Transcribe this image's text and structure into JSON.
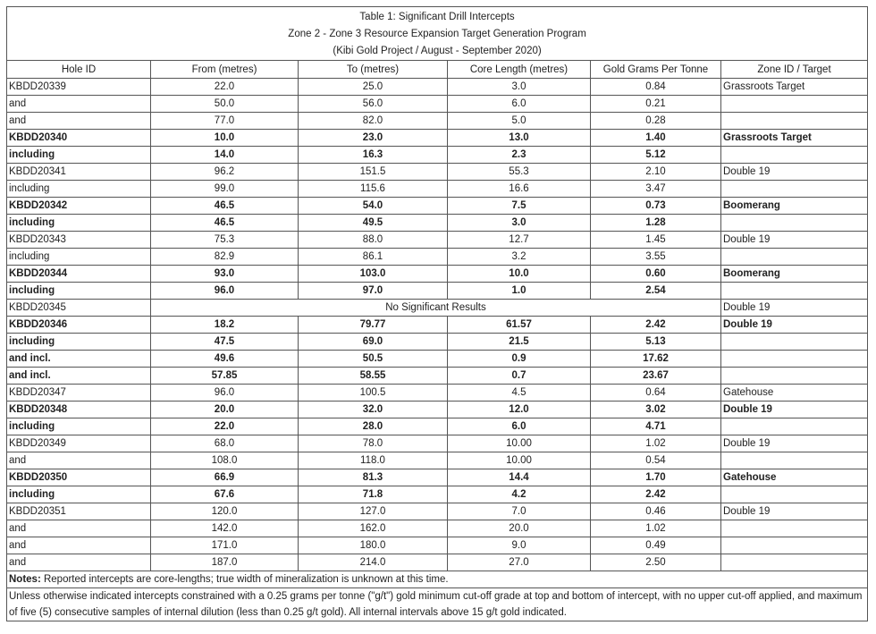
{
  "title": {
    "lines": [
      "Table 1: Significant Drill Intercepts",
      "Zone 2 - Zone 3 Resource Expansion Target Generation Program",
      "(Kibi Gold Project / August - September 2020)"
    ]
  },
  "table": {
    "headers": [
      "Hole ID",
      "From (metres)",
      "To (metres)",
      "Core Length (metres)",
      "Gold Grams Per Tonne",
      "Zone ID / Target"
    ],
    "rows": [
      {
        "cells": [
          "KBDD20339",
          "22.0",
          "25.0",
          "3.0",
          "0.84",
          "Grassroots Target"
        ],
        "bold": false
      },
      {
        "cells": [
          "and",
          "50.0",
          "56.0",
          "6.0",
          "0.21"
        ],
        "bold": false
      },
      {
        "cells": [
          "and",
          "77.0",
          "82.0",
          "5.0",
          "0.28"
        ],
        "bold": false
      },
      {
        "cells": [
          "KBDD20340",
          "10.0",
          "23.0",
          "13.0",
          "1.40",
          "Grassroots Target"
        ],
        "bold": true
      },
      {
        "cells": [
          "including",
          "14.0",
          "16.3",
          "2.3",
          "5.12"
        ],
        "bold": true
      },
      {
        "cells": [
          "KBDD20341",
          "96.2",
          "151.5",
          "55.3",
          "2.10",
          "Double 19"
        ],
        "bold": false
      },
      {
        "cells": [
          "including",
          "99.0",
          "115.6",
          "16.6",
          "3.47"
        ],
        "bold": false
      },
      {
        "cells": [
          "KBDD20342",
          "46.5",
          "54.0",
          "7.5",
          "0.73",
          "Boomerang"
        ],
        "bold": true
      },
      {
        "cells": [
          "including",
          "46.5",
          "49.5",
          "3.0",
          "1.28"
        ],
        "bold": true
      },
      {
        "cells": [
          "KBDD20343",
          "75.3",
          "88.0",
          "12.7",
          "1.45",
          "Double 19"
        ],
        "bold": false
      },
      {
        "cells": [
          "including",
          "82.9",
          "86.1",
          "3.2",
          "3.55"
        ],
        "bold": false
      },
      {
        "cells": [
          "KBDD20344",
          "93.0",
          "103.0",
          "10.0",
          "0.60",
          "Boomerang"
        ],
        "bold": true
      },
      {
        "cells": [
          "including",
          "96.0",
          "97.0",
          "1.0",
          "2.54"
        ],
        "bold": true
      },
      {
        "cells": [
          "KBDD20345",
          "No Significant Results",
          "Double 19"
        ],
        "bold": false
      },
      {
        "cells": [
          "KBDD20346",
          "18.2",
          "79.77",
          "61.57",
          "2.42",
          "Double 19"
        ],
        "bold": true
      },
      {
        "cells": [
          "including",
          "47.5",
          "69.0",
          "21.5",
          "5.13"
        ],
        "bold": true
      },
      {
        "cells": [
          "and incl.",
          "49.6",
          "50.5",
          "0.9",
          "17.62"
        ],
        "bold": true
      },
      {
        "cells": [
          "and incl.",
          "57.85",
          "58.55",
          "0.7",
          "23.67"
        ],
        "bold": true
      },
      {
        "cells": [
          "KBDD20347",
          "96.0",
          "100.5",
          "4.5",
          "0.64",
          "Gatehouse"
        ],
        "bold": false
      },
      {
        "cells": [
          "KBDD20348",
          "20.0",
          "32.0",
          "12.0",
          "3.02",
          "Double 19"
        ],
        "bold": true
      },
      {
        "cells": [
          "including",
          "22.0",
          "28.0",
          "6.0",
          "4.71"
        ],
        "bold": true
      },
      {
        "cells": [
          "KBDD20349",
          "68.0",
          "78.0",
          "10.00",
          "1.02",
          "Double 19"
        ],
        "bold": false
      },
      {
        "cells": [
          "and",
          "108.0",
          "118.0",
          "10.00",
          "0.54"
        ],
        "bold": false
      },
      {
        "cells": [
          "KBDD20350",
          "66.9",
          "81.3",
          "14.4",
          "1.70",
          "Gatehouse"
        ],
        "bold": true
      },
      {
        "cells": [
          "including",
          "67.6",
          "71.8",
          "4.2",
          "2.42"
        ],
        "bold": true
      },
      {
        "cells": [
          "KBDD20351",
          "120.0",
          "127.0",
          "7.0",
          "0.46",
          "Double 19"
        ],
        "bold": false
      },
      {
        "cells": [
          "and",
          "142.0",
          "162.0",
          "20.0",
          "1.02"
        ],
        "bold": false
      },
      {
        "cells": [
          "and",
          "171.0",
          "180.0",
          "9.0",
          "0.49"
        ],
        "bold": false
      },
      {
        "cells": [
          "and",
          "187.0",
          "214.0",
          "27.0",
          "2.50"
        ],
        "bold": false
      }
    ]
  },
  "notes": {
    "label": "Notes:",
    "text": "Reported intercepts are core-lengths; true width of mineralization is unknown at this time."
  },
  "footer": "Unless otherwise indicated intercepts constrained with a 0.25 grams per tonne (\"g/t\") gold minimum cut-off grade at top and bottom of intercept, with no upper cut-off applied, and maximum of five (5) consecutive samples of internal dilution (less than 0.25 g/t gold). All internal intervals above 15 g/t gold indicated."
}
